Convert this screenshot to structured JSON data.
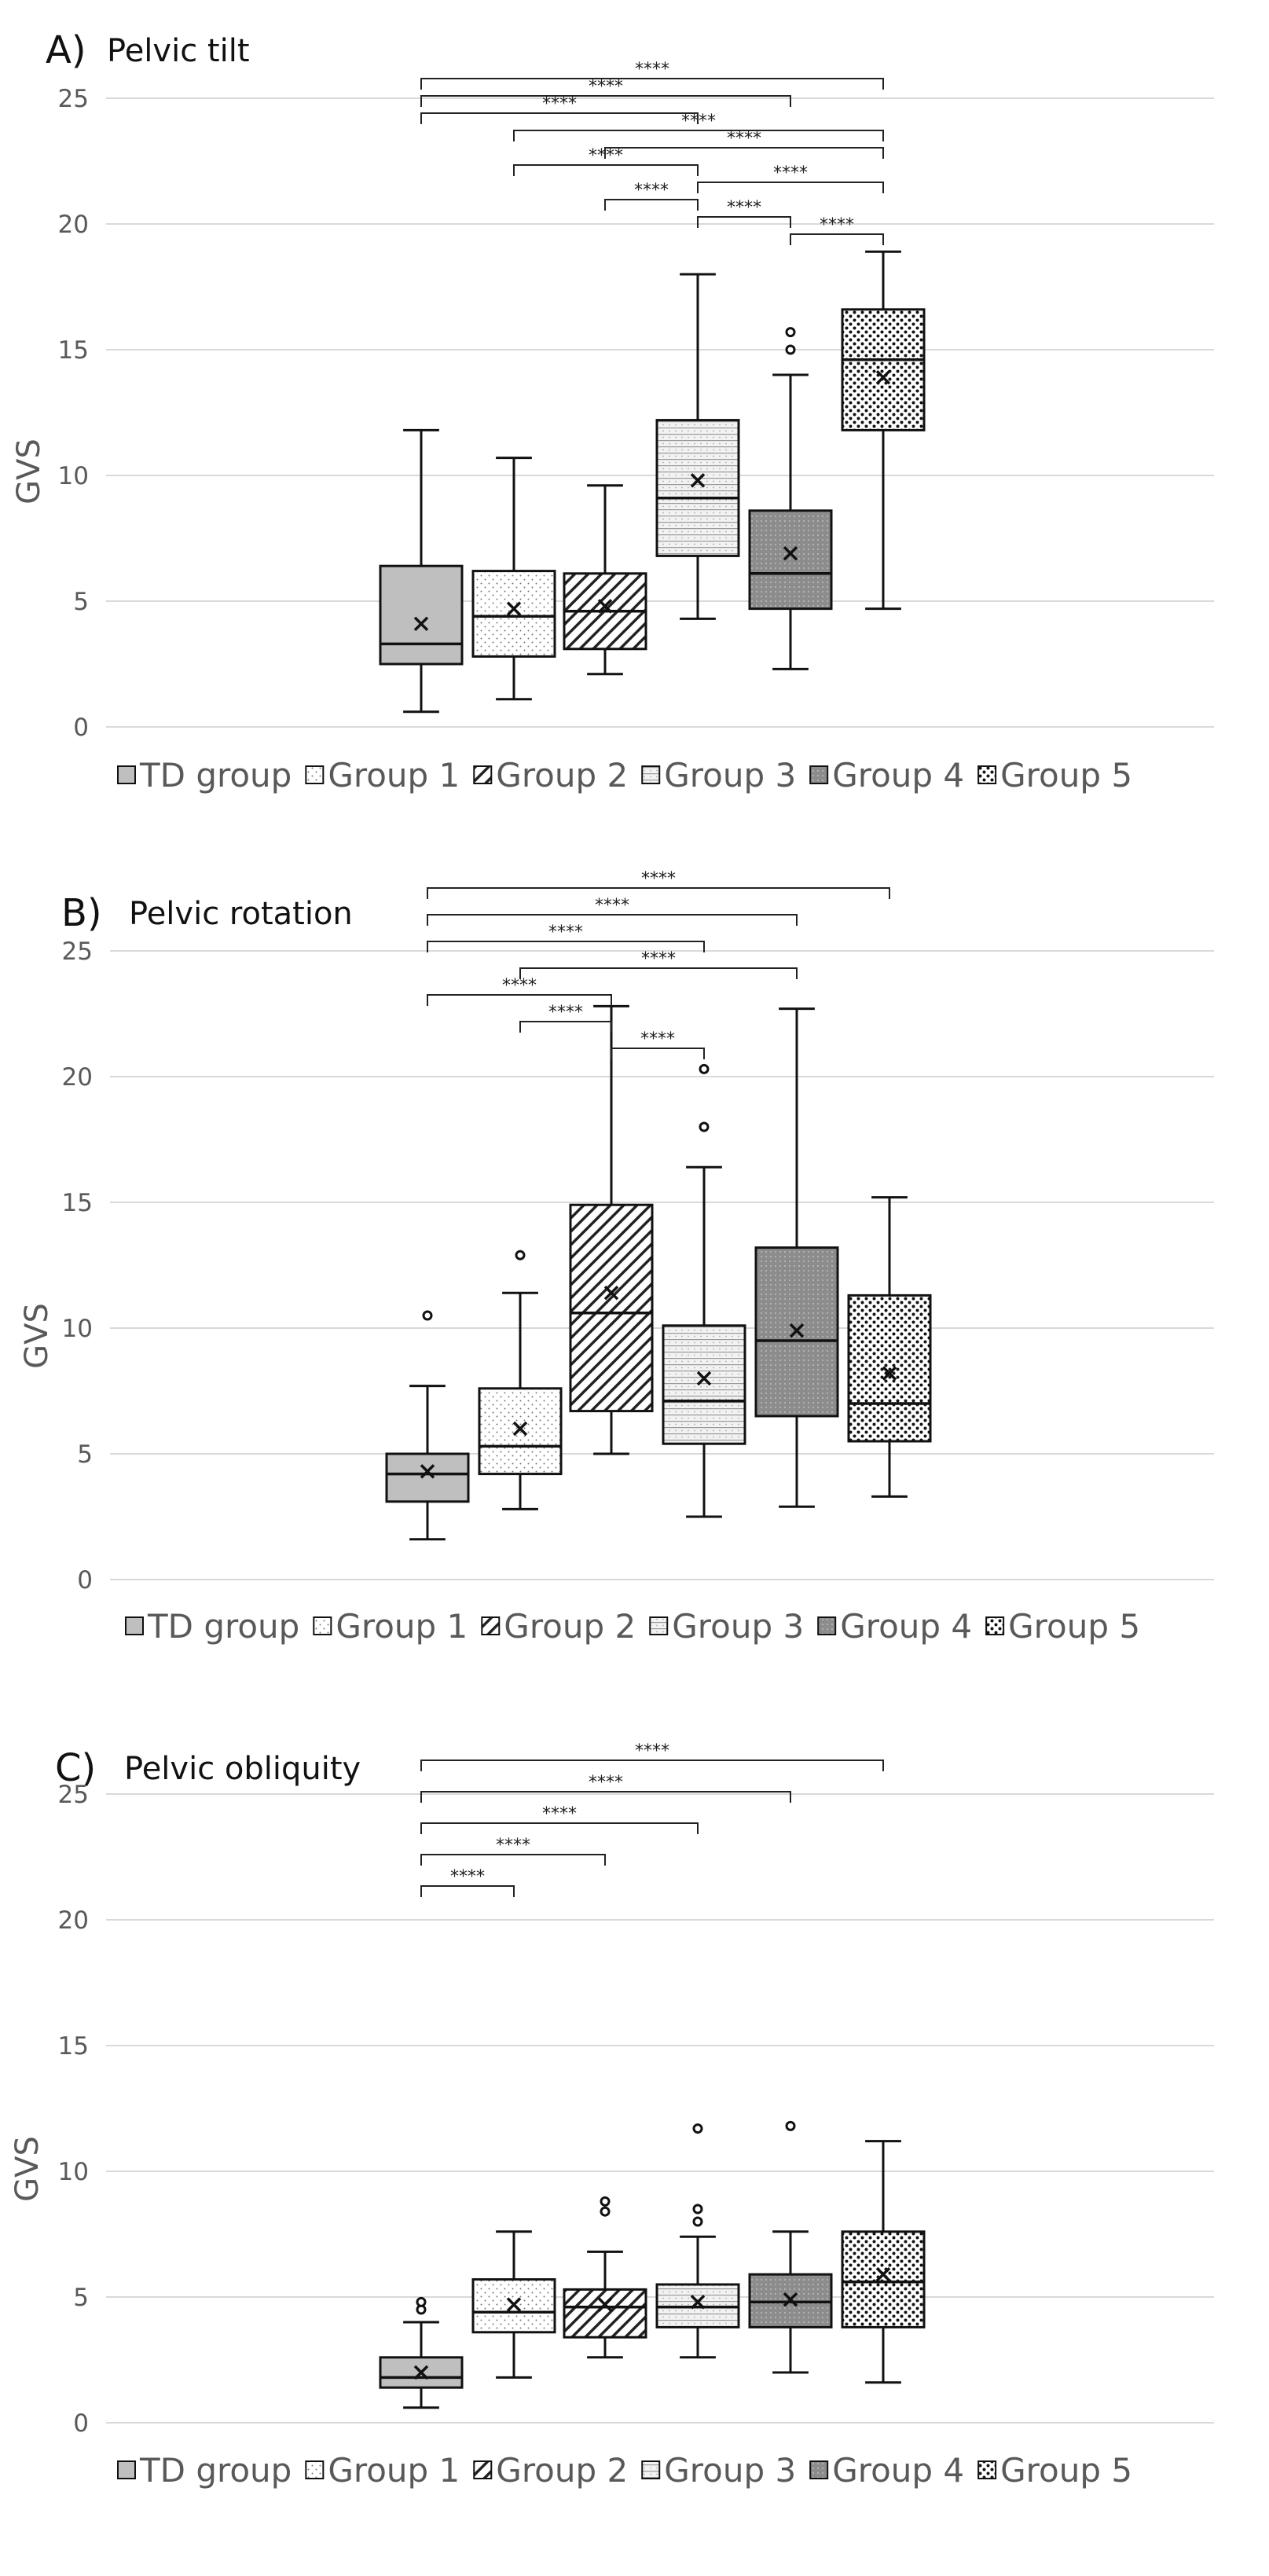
{
  "legend": [
    "TD group",
    "Group 1",
    "Group 2",
    "Group 3",
    "Group 4",
    "Group 5"
  ],
  "chart_data": [
    {
      "type": "box",
      "panel_letter": "A)",
      "title": "Pelvic tilt",
      "ylabel": "GVS",
      "ylim": [
        0,
        25
      ],
      "yticks": [
        0,
        5,
        10,
        15,
        20,
        25
      ],
      "categories": [
        "TD group",
        "Group 1",
        "Group 2",
        "Group 3",
        "Group 4",
        "Group 5"
      ],
      "boxes": [
        {
          "min": 0.6,
          "q1": 2.5,
          "median": 3.3,
          "q3": 6.4,
          "max": 11.8,
          "mean": 4.1,
          "outliers": []
        },
        {
          "min": 1.1,
          "q1": 2.8,
          "median": 4.4,
          "q3": 6.2,
          "max": 10.7,
          "mean": 4.7,
          "outliers": []
        },
        {
          "min": 2.1,
          "q1": 3.1,
          "median": 4.6,
          "q3": 6.1,
          "max": 9.6,
          "mean": 4.8,
          "outliers": []
        },
        {
          "min": 4.3,
          "q1": 6.8,
          "median": 9.1,
          "q3": 12.2,
          "max": 18.0,
          "mean": 9.8,
          "outliers": []
        },
        {
          "min": 2.3,
          "q1": 4.7,
          "median": 6.1,
          "q3": 8.6,
          "max": 14.0,
          "mean": 6.9,
          "outliers": [
            15.0,
            15.7
          ]
        },
        {
          "min": 4.7,
          "q1": 11.8,
          "median": 14.6,
          "q3": 16.6,
          "max": 18.9,
          "mean": 13.9,
          "outliers": []
        }
      ],
      "significance": [
        {
          "from": 0,
          "to": 5,
          "label": "****"
        },
        {
          "from": 0,
          "to": 4,
          "label": "****"
        },
        {
          "from": 0,
          "to": 3,
          "label": "****"
        },
        {
          "from": 1,
          "to": 5,
          "label": "****"
        },
        {
          "from": 2,
          "to": 5,
          "label": "****"
        },
        {
          "from": 1,
          "to": 3,
          "label": "****"
        },
        {
          "from": 3,
          "to": 5,
          "label": "****"
        },
        {
          "from": 2,
          "to": 3,
          "label": "****"
        },
        {
          "from": 3,
          "to": 4,
          "label": "****"
        },
        {
          "from": 4,
          "to": 5,
          "label": "****"
        }
      ]
    },
    {
      "type": "box",
      "panel_letter": "B)",
      "title": "Pelvic rotation",
      "ylabel": "GVS",
      "ylim": [
        0,
        25
      ],
      "yticks": [
        0,
        5,
        10,
        15,
        20,
        25
      ],
      "categories": [
        "TD group",
        "Group 1",
        "Group 2",
        "Group 3",
        "Group 4",
        "Group 5"
      ],
      "boxes": [
        {
          "min": 1.6,
          "q1": 3.1,
          "median": 4.2,
          "q3": 5.0,
          "max": 7.7,
          "mean": 4.3,
          "outliers": [
            10.5
          ]
        },
        {
          "min": 2.8,
          "q1": 4.2,
          "median": 5.3,
          "q3": 7.6,
          "max": 11.4,
          "mean": 6.0,
          "outliers": [
            12.9
          ]
        },
        {
          "min": 5.0,
          "q1": 6.7,
          "median": 10.6,
          "q3": 14.9,
          "max": 22.8,
          "mean": 11.4,
          "outliers": []
        },
        {
          "min": 2.5,
          "q1": 5.4,
          "median": 7.1,
          "q3": 10.1,
          "max": 16.4,
          "mean": 8.0,
          "outliers": [
            18.0,
            20.3
          ]
        },
        {
          "min": 2.9,
          "q1": 6.5,
          "median": 9.5,
          "q3": 13.2,
          "max": 22.7,
          "mean": 9.9,
          "outliers": []
        },
        {
          "min": 3.3,
          "q1": 5.5,
          "median": 7.0,
          "q3": 11.3,
          "max": 15.2,
          "mean": 8.2,
          "outliers": []
        }
      ],
      "significance": [
        {
          "from": 0,
          "to": 5,
          "label": "****"
        },
        {
          "from": 0,
          "to": 4,
          "label": "****"
        },
        {
          "from": 0,
          "to": 3,
          "label": "****"
        },
        {
          "from": 1,
          "to": 4,
          "label": "****"
        },
        {
          "from": 0,
          "to": 2,
          "label": "****"
        },
        {
          "from": 1,
          "to": 2,
          "label": "****"
        },
        {
          "from": 2,
          "to": 3,
          "label": "****"
        }
      ]
    },
    {
      "type": "box",
      "panel_letter": "C)",
      "title": "Pelvic obliquity",
      "ylabel": "GVS",
      "ylim": [
        0,
        25
      ],
      "yticks": [
        0,
        5,
        10,
        15,
        20,
        25
      ],
      "categories": [
        "TD group",
        "Group 1",
        "Group 2",
        "Group 3",
        "Group 4",
        "Group 5"
      ],
      "boxes": [
        {
          "min": 0.6,
          "q1": 1.4,
          "median": 1.8,
          "q3": 2.6,
          "max": 4.0,
          "mean": 2.0,
          "outliers": [
            4.5,
            4.8
          ]
        },
        {
          "min": 1.8,
          "q1": 3.6,
          "median": 4.4,
          "q3": 5.7,
          "max": 7.6,
          "mean": 4.7,
          "outliers": []
        },
        {
          "min": 2.6,
          "q1": 3.4,
          "median": 4.6,
          "q3": 5.3,
          "max": 6.8,
          "mean": 4.7,
          "outliers": [
            8.4,
            8.8
          ]
        },
        {
          "min": 2.6,
          "q1": 3.8,
          "median": 4.6,
          "q3": 5.5,
          "max": 7.4,
          "mean": 4.8,
          "outliers": [
            8.0,
            8.5,
            11.7
          ]
        },
        {
          "min": 2.0,
          "q1": 3.8,
          "median": 4.8,
          "q3": 5.9,
          "max": 7.6,
          "mean": 4.9,
          "outliers": [
            11.8
          ]
        },
        {
          "min": 1.6,
          "q1": 3.8,
          "median": 5.6,
          "q3": 7.6,
          "max": 11.2,
          "mean": 5.9,
          "outliers": []
        }
      ],
      "significance": [
        {
          "from": 0,
          "to": 5,
          "label": "****"
        },
        {
          "from": 0,
          "to": 4,
          "label": "****"
        },
        {
          "from": 0,
          "to": 3,
          "label": "****"
        },
        {
          "from": 0,
          "to": 2,
          "label": "****"
        },
        {
          "from": 0,
          "to": 1,
          "label": "****"
        }
      ]
    }
  ]
}
